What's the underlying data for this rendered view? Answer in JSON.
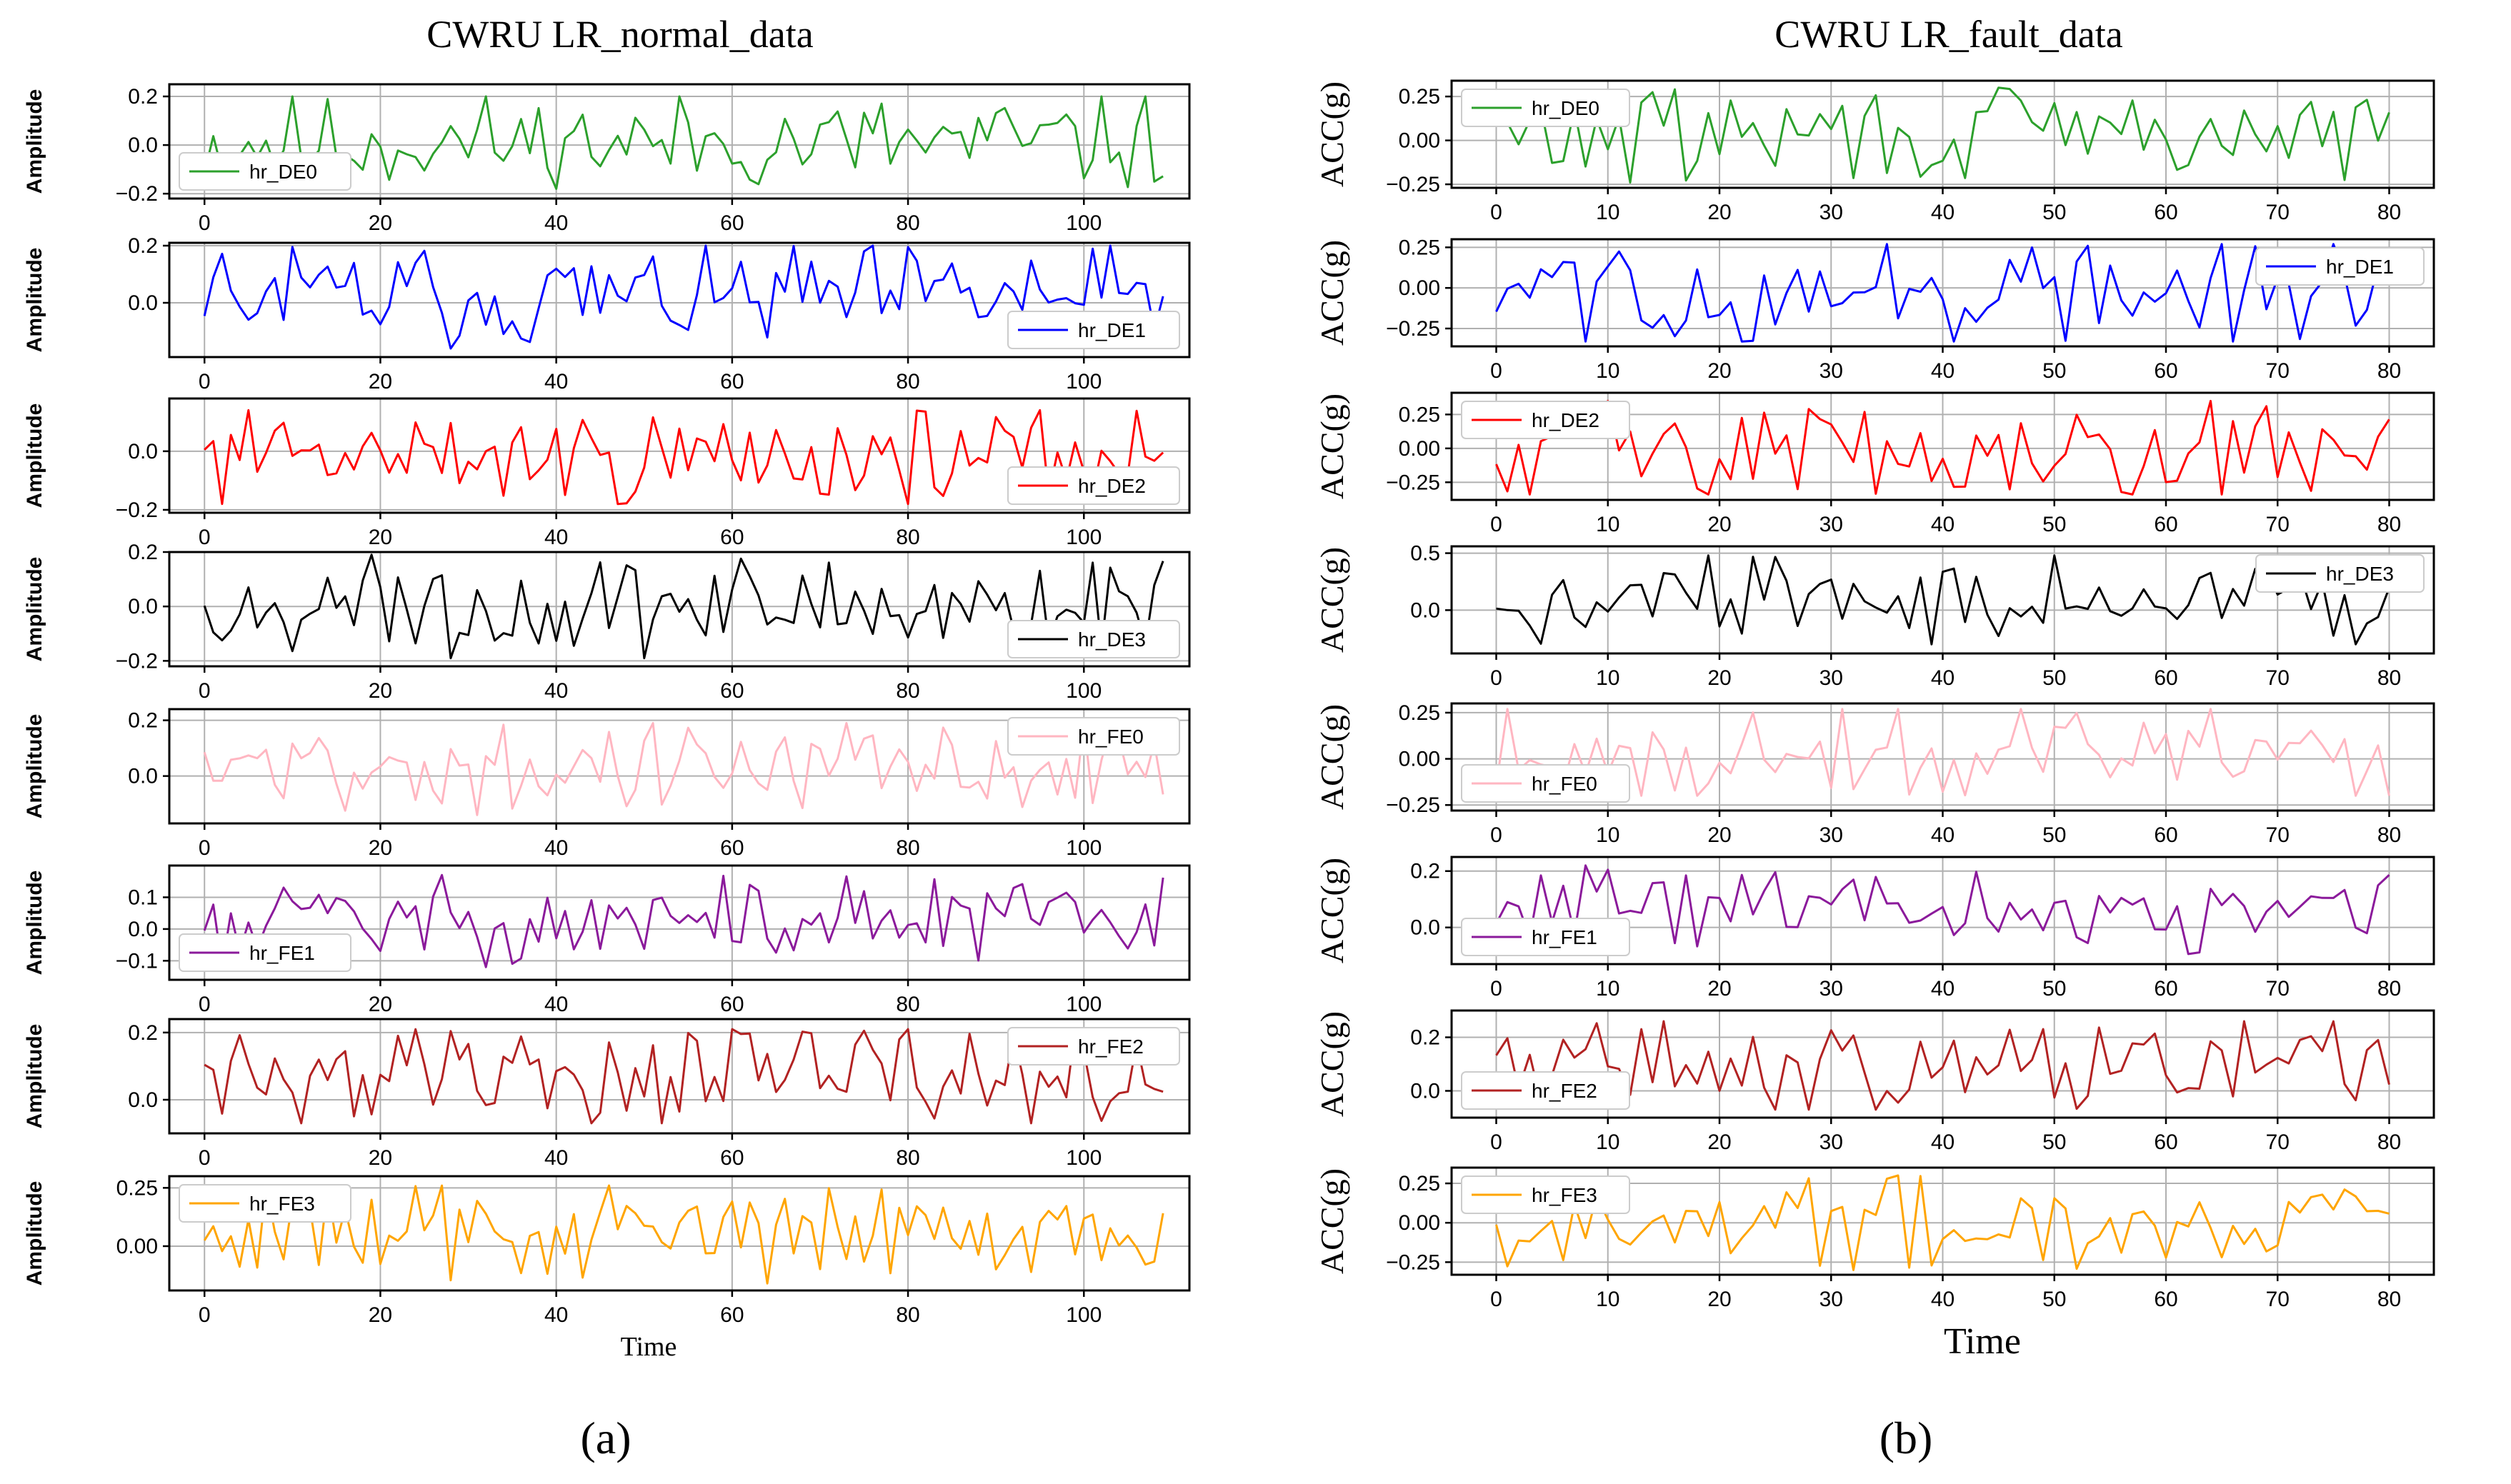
{
  "figure": {
    "panel_a_label": "(a)",
    "panel_b_label": "(b)"
  },
  "chart_data": [
    {
      "type": "line",
      "title": "CWRU LR_normal_data",
      "xlabel": "Time",
      "ylabel": "Amplitude",
      "xlim": [
        -4,
        112
      ],
      "xticks": [
        0,
        20,
        40,
        60,
        80,
        100
      ],
      "seed": 11,
      "subplots": [
        {
          "name": "hr_DE0",
          "color": "#2ca02c",
          "ylim": [
            -0.22,
            0.25
          ],
          "yticks": [
            -0.2,
            0.0,
            0.2
          ],
          "ytick_labels": [
            "−0.2",
            "0.0",
            "0.2"
          ],
          "legend": "lower-left",
          "range": [
            -0.18,
            0.2
          ],
          "n": 110
        },
        {
          "name": "hr_DE1",
          "color": "#0000ff",
          "ylim": [
            -0.19,
            0.21
          ],
          "yticks": [
            0.0,
            0.2
          ],
          "ytick_labels": [
            "0.0",
            "0.2"
          ],
          "legend": "lower-right",
          "range": [
            -0.16,
            0.2
          ],
          "n": 110
        },
        {
          "name": "hr_DE2",
          "color": "#ff0000",
          "ylim": [
            -0.21,
            0.18
          ],
          "yticks": [
            -0.2,
            0.0
          ],
          "ytick_labels": [
            "−0.2",
            "0.0"
          ],
          "legend": "lower-right",
          "range": [
            -0.18,
            0.14
          ],
          "n": 110
        },
        {
          "name": "hr_DE3",
          "color": "#000000",
          "ylim": [
            -0.22,
            0.2
          ],
          "yticks": [
            -0.2,
            0.0,
            0.2
          ],
          "ytick_labels": [
            "−0.2",
            "0.0",
            "0.2"
          ],
          "legend": "lower-right",
          "range": [
            -0.19,
            0.19
          ],
          "n": 110
        },
        {
          "name": "hr_FE0",
          "color": "#ffb6c1",
          "ylim": [
            -0.17,
            0.24
          ],
          "yticks": [
            0.0,
            0.2
          ],
          "ytick_labels": [
            "0.0",
            "0.2"
          ],
          "legend": "upper-right",
          "range": [
            -0.14,
            0.19
          ],
          "n": 110
        },
        {
          "name": "hr_FE1",
          "color": "#8b1a9b",
          "ylim": [
            -0.16,
            0.2
          ],
          "yticks": [
            -0.1,
            0.0,
            0.1
          ],
          "ytick_labels": [
            "−0.1",
            "0.0",
            "0.1"
          ],
          "legend": "lower-left",
          "range": [
            -0.12,
            0.17
          ],
          "n": 110
        },
        {
          "name": "hr_FE2",
          "color": "#b22222",
          "ylim": [
            -0.1,
            0.24
          ],
          "yticks": [
            0.0,
            0.2
          ],
          "ytick_labels": [
            "0.0",
            "0.2"
          ],
          "legend": "upper-right",
          "range": [
            -0.07,
            0.21
          ],
          "n": 110
        },
        {
          "name": "hr_FE3",
          "color": "#ffa500",
          "ylim": [
            -0.19,
            0.3
          ],
          "yticks": [
            0.0,
            0.25
          ],
          "ytick_labels": [
            "0.00",
            "0.25"
          ],
          "legend": "upper-left",
          "range": [
            -0.16,
            0.26
          ],
          "n": 110
        }
      ]
    },
    {
      "type": "line",
      "title": "CWRU LR_fault_data",
      "xlabel": "Time",
      "ylabel": "ACC(g)",
      "xlim": [
        -4,
        84
      ],
      "xticks": [
        0,
        10,
        20,
        30,
        40,
        50,
        60,
        70,
        80
      ],
      "seed": 29,
      "subplots": [
        {
          "name": "hr_DE0",
          "color": "#2ca02c",
          "ylim": [
            -0.27,
            0.34
          ],
          "yticks": [
            -0.25,
            0.0,
            0.25
          ],
          "ytick_labels": [
            "−0.25",
            "0.00",
            "0.25"
          ],
          "legend": "upper-left",
          "range": [
            -0.24,
            0.3
          ],
          "n": 81
        },
        {
          "name": "hr_DE1",
          "color": "#0000ff",
          "ylim": [
            -0.36,
            0.3
          ],
          "yticks": [
            -0.25,
            0.0,
            0.25
          ],
          "ytick_labels": [
            "−0.25",
            "0.00",
            "0.25"
          ],
          "legend": "upper-right",
          "range": [
            -0.33,
            0.27
          ],
          "n": 81
        },
        {
          "name": "hr_DE2",
          "color": "#ff0000",
          "ylim": [
            -0.38,
            0.41
          ],
          "yticks": [
            -0.25,
            0.0,
            0.25
          ],
          "ytick_labels": [
            "−0.25",
            "0.00",
            "0.25"
          ],
          "legend": "upper-left",
          "range": [
            -0.34,
            0.35
          ],
          "n": 81
        },
        {
          "name": "hr_DE3",
          "color": "#000000",
          "ylim": [
            -0.38,
            0.56
          ],
          "yticks": [
            0.0,
            0.5
          ],
          "ytick_labels": [
            "0.0",
            "0.5"
          ],
          "legend": "upper-right",
          "range": [
            -0.3,
            0.48
          ],
          "n": 81
        },
        {
          "name": "hr_FE0",
          "color": "#ffb6c1",
          "ylim": [
            -0.28,
            0.3
          ],
          "yticks": [
            -0.25,
            0.0,
            0.25
          ],
          "ytick_labels": [
            "−0.25",
            "0.00",
            "0.25"
          ],
          "legend": "lower-left",
          "range": [
            -0.2,
            0.27
          ],
          "n": 81
        },
        {
          "name": "hr_FE1",
          "color": "#8b1a9b",
          "ylim": [
            -0.13,
            0.25
          ],
          "yticks": [
            0.0,
            0.2
          ],
          "ytick_labels": [
            "0.0",
            "0.2"
          ],
          "legend": "lower-left",
          "range": [
            -0.1,
            0.22
          ],
          "n": 81
        },
        {
          "name": "hr_FE2",
          "color": "#b22222",
          "ylim": [
            -0.1,
            0.3
          ],
          "yticks": [
            0.0,
            0.2
          ],
          "ytick_labels": [
            "0.0",
            "0.2"
          ],
          "legend": "lower-left",
          "range": [
            -0.07,
            0.26
          ],
          "n": 81
        },
        {
          "name": "hr_FE3",
          "color": "#ffa500",
          "ylim": [
            -0.33,
            0.35
          ],
          "yticks": [
            -0.25,
            0.0,
            0.25
          ],
          "ytick_labels": [
            "−0.25",
            "0.00",
            "0.25"
          ],
          "legend": "upper-left",
          "range": [
            -0.3,
            0.3
          ],
          "n": 81
        }
      ]
    }
  ]
}
